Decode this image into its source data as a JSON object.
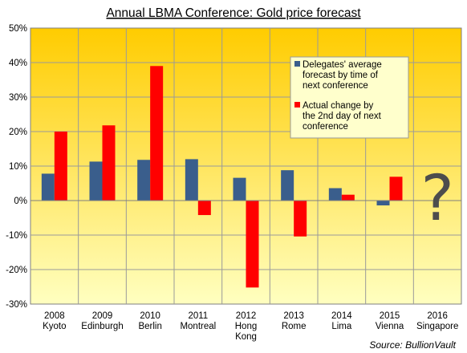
{
  "chart_data": {
    "type": "bar",
    "title": "Annual  LBMA Conference:  Gold price forecast",
    "categories": [
      [
        "2008",
        "Kyoto"
      ],
      [
        "2009",
        "Edinburgh"
      ],
      [
        "2010",
        "Berlin"
      ],
      [
        "2011",
        "Montreal"
      ],
      [
        "2012",
        "Hong",
        "Kong"
      ],
      [
        "2013",
        "Rome"
      ],
      [
        "2014",
        "Lima"
      ],
      [
        "2015",
        "Vienna"
      ],
      [
        "2016",
        "Singapore"
      ]
    ],
    "series": [
      {
        "name": [
          "Delegates' average",
          "forecast by time of",
          "next conference"
        ],
        "color": "#3a5e8c",
        "values": [
          7.8,
          11.3,
          11.8,
          12.0,
          6.6,
          8.8,
          3.6,
          -1.4,
          null
        ]
      },
      {
        "name": [
          "Actual change by",
          "the 2nd day of next",
          "conference"
        ],
        "color": "#ff0000",
        "values": [
          20.0,
          21.8,
          39.0,
          -4.2,
          -25.2,
          -10.4,
          1.7,
          6.9,
          null
        ]
      }
    ],
    "ylim": [
      -30,
      50
    ],
    "yticks": [
      -30,
      -20,
      -10,
      0,
      10,
      20,
      30,
      40,
      50
    ],
    "ytick_suffix": "%",
    "grid": true,
    "legend_position": "top-right",
    "annotation": "?",
    "source": "Source:  BullionVault",
    "background_colors": {
      "top": "#ffcc00",
      "bottom": "#ffffc0"
    }
  }
}
